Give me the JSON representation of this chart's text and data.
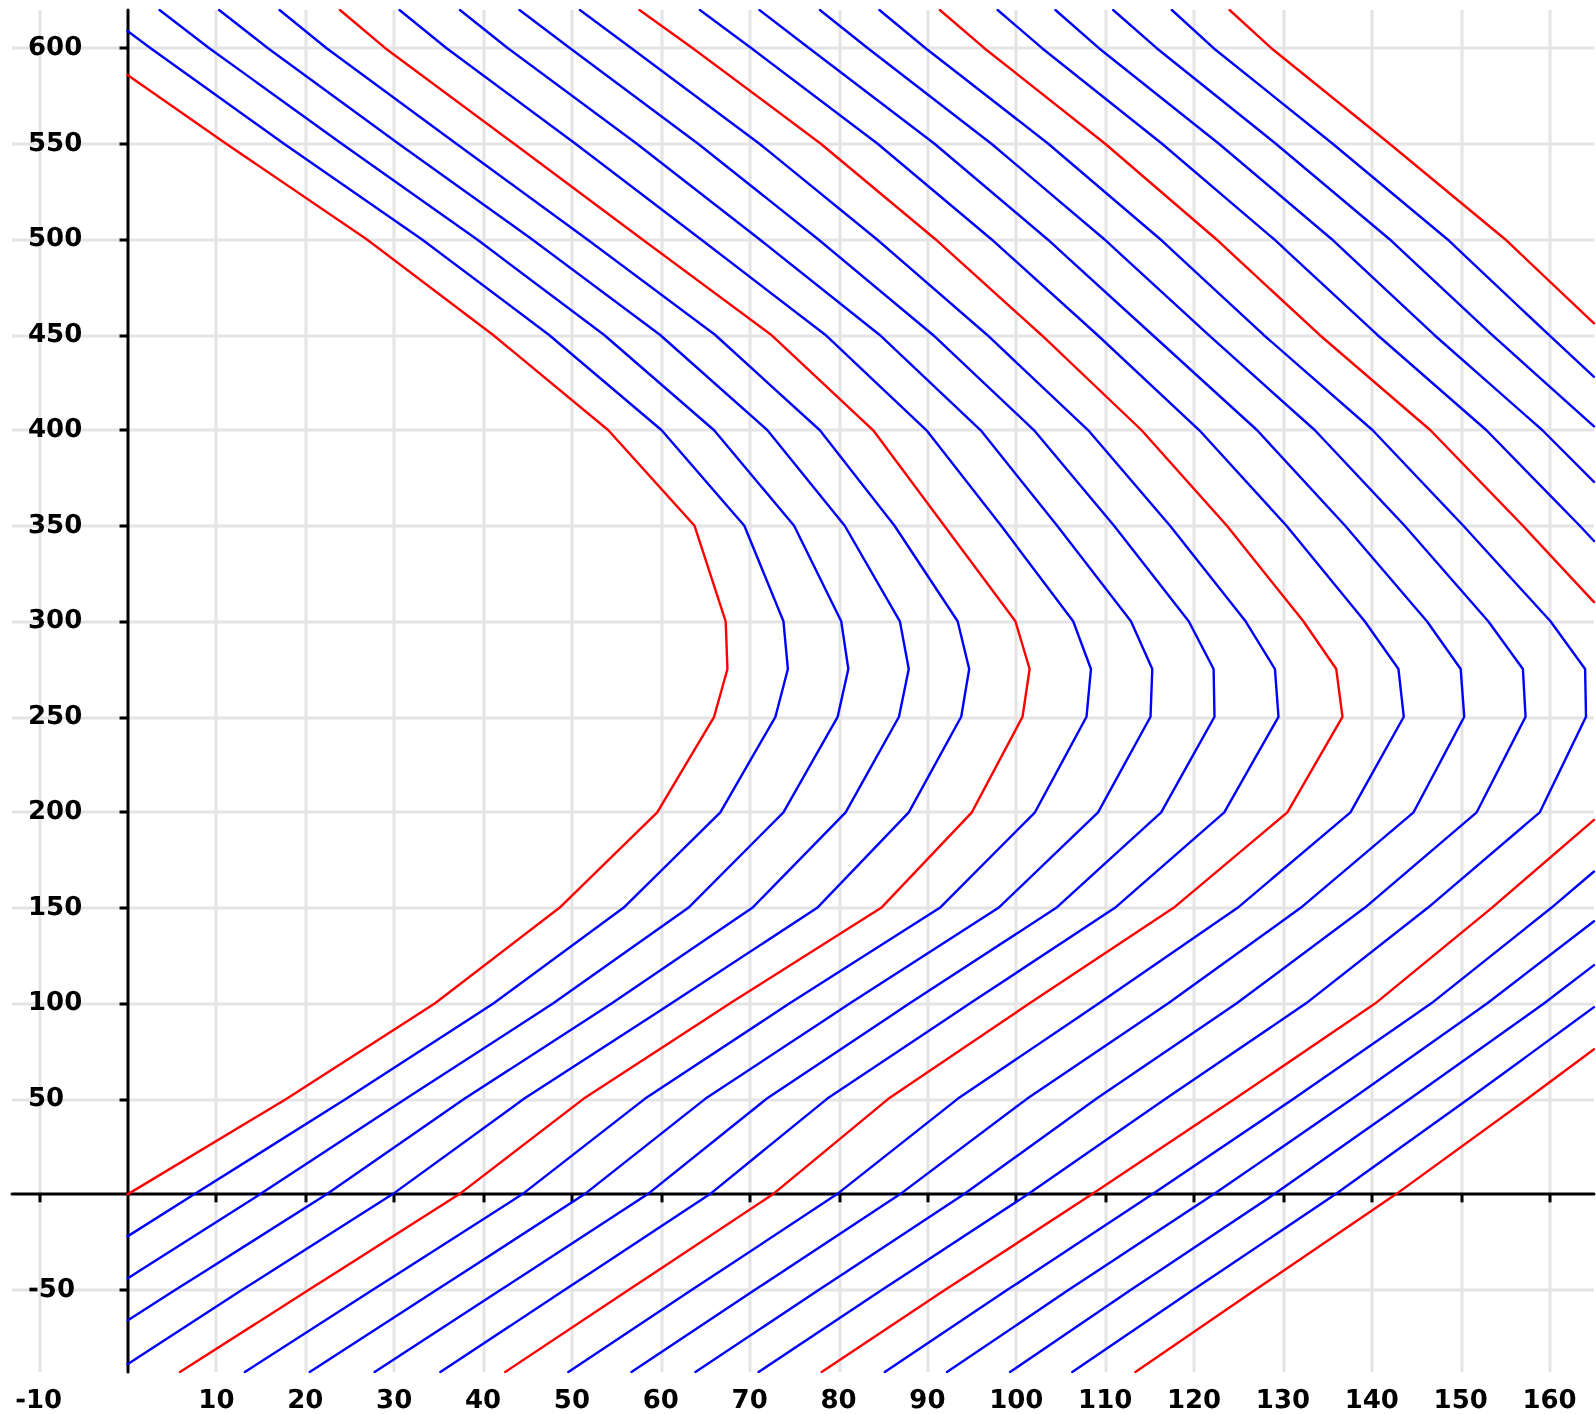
{
  "chart_data": {
    "type": "line",
    "marker": "none",
    "line_style": "solid",
    "grid": true,
    "xlim": [
      -13,
      165
    ],
    "ylim": [
      -93,
      620
    ],
    "xticks": [
      -10,
      10,
      20,
      30,
      40,
      50,
      60,
      70,
      80,
      90,
      100,
      110,
      120,
      130,
      140,
      150,
      160
    ],
    "yticks": [
      -50,
      50,
      100,
      150,
      200,
      250,
      300,
      350,
      400,
      450,
      500,
      550,
      600
    ],
    "series": [
      {
        "color": "#ff0000",
        "x": [
          0,
          11.1,
          26.9,
          41.1,
          54.1,
          63.8,
          67.3,
          67.5,
          66,
          59.6,
          48.6,
          34.6,
          17.9,
          0
        ],
        "values": [
          586,
          550,
          500,
          450,
          400,
          350,
          300,
          275,
          250,
          200,
          150,
          100,
          50,
          0
        ]
      },
      {
        "color": "#0000ff",
        "x": [
          0,
          2.6,
          17.6,
          33.1,
          47.4,
          60.1,
          69.4,
          73.8,
          74.3,
          72.9,
          66.7,
          55.8,
          41.2,
          24.6,
          7.5,
          0
        ],
        "values": [
          609,
          600,
          550,
          500,
          450,
          400,
          350,
          300,
          275,
          250,
          200,
          150,
          100,
          50,
          0,
          -22
        ]
      },
      {
        "color": "#0000ff",
        "x": [
          3.6,
          9.2,
          24.1,
          39.3,
          53.6,
          66,
          75,
          80.3,
          81.1,
          79.9,
          73.8,
          63.1,
          47.9,
          31.3,
          14.9,
          0
        ],
        "values": [
          620,
          600,
          550,
          500,
          450,
          400,
          350,
          300,
          275,
          250,
          200,
          150,
          100,
          50,
          0,
          -44
        ]
      },
      {
        "color": "#0000ff",
        "x": [
          10.3,
          15.8,
          30.5,
          45.5,
          59.9,
          72,
          80.7,
          86.9,
          87.9,
          86.8,
          80.8,
          70.3,
          54.5,
          37.9,
          22.4,
          5.4,
          0
        ],
        "values": [
          620,
          600,
          550,
          500,
          450,
          400,
          350,
          300,
          275,
          250,
          200,
          150,
          100,
          50,
          0,
          -50,
          -66
        ]
      },
      {
        "color": "#0000ff",
        "x": [
          17.1,
          22.4,
          37,
          51.7,
          66.1,
          77.9,
          86.3,
          93.4,
          94.7,
          93.8,
          87.9,
          77.6,
          61.2,
          44.6,
          29.8,
          12.9,
          0
        ],
        "values": [
          620,
          600,
          550,
          500,
          450,
          400,
          350,
          300,
          275,
          250,
          200,
          150,
          100,
          50,
          0,
          -50,
          -89
        ]
      },
      {
        "color": "#ff0000",
        "x": [
          23.9,
          29,
          43.5,
          57.9,
          72.4,
          83.9,
          91.9,
          99.9,
          101.5,
          100.7,
          95,
          84.8,
          67.8,
          51.3,
          37.3,
          20.4,
          5.9
        ],
        "values": [
          620,
          600,
          550,
          500,
          450,
          400,
          350,
          300,
          275,
          250,
          200,
          150,
          100,
          50,
          0,
          -50,
          -93
        ]
      },
      {
        "color": "#0000ff",
        "x": [
          30.6,
          35.9,
          50.4,
          64.5,
          78.5,
          89.9,
          98.3,
          106.4,
          108.4,
          107.9,
          102.1,
          91.4,
          74.5,
          58.2,
          44.4,
          27.6,
          13.2
        ],
        "values": [
          620,
          600,
          550,
          500,
          450,
          400,
          350,
          300,
          275,
          250,
          200,
          150,
          100,
          50,
          0,
          -50,
          -93
        ]
      },
      {
        "color": "#0000ff",
        "x": [
          37.4,
          42.8,
          57.3,
          71.1,
          84.6,
          96,
          104.6,
          112.9,
          115.3,
          115.1,
          109.2,
          98,
          81.3,
          65,
          51.4,
          34.8,
          20.5
        ],
        "values": [
          620,
          600,
          550,
          500,
          450,
          400,
          350,
          300,
          275,
          250,
          200,
          150,
          100,
          50,
          0,
          -50,
          -93
        ]
      },
      {
        "color": "#0000ff",
        "x": [
          44.1,
          49.8,
          64.2,
          77.7,
          90.6,
          102,
          111,
          119.4,
          122.2,
          122.3,
          116.3,
          104.5,
          88,
          71.9,
          58.5,
          42,
          27.8
        ],
        "values": [
          620,
          600,
          550,
          500,
          450,
          400,
          350,
          300,
          275,
          250,
          200,
          150,
          100,
          50,
          0,
          -50,
          -93
        ]
      },
      {
        "color": "#0000ff",
        "x": [
          50.9,
          56.7,
          71.1,
          84.3,
          96.7,
          108.1,
          117.3,
          125.8,
          129.1,
          129.5,
          123.4,
          111.1,
          94.8,
          78.7,
          65.5,
          49.2,
          35.2
        ],
        "values": [
          620,
          600,
          550,
          500,
          450,
          400,
          350,
          300,
          275,
          250,
          200,
          150,
          100,
          50,
          0,
          -50,
          -93
        ]
      },
      {
        "color": "#ff0000",
        "x": [
          57.6,
          63.6,
          78,
          90.9,
          102.8,
          114.1,
          123.7,
          132.3,
          136,
          136.7,
          130.5,
          117.7,
          101.5,
          85.6,
          72.6,
          56.4,
          42.5
        ],
        "values": [
          620,
          600,
          550,
          500,
          450,
          400,
          350,
          300,
          275,
          250,
          200,
          150,
          100,
          50,
          0,
          -50,
          -93
        ]
      },
      {
        "color": "#0000ff",
        "x": [
          64.4,
          70.2,
          84.4,
          97.2,
          109.1,
          120.6,
          130.4,
          139.2,
          143,
          143.6,
          137.6,
          124.9,
          109.3,
          93.4,
          79.8,
          63.5,
          49.6
        ],
        "values": [
          620,
          600,
          550,
          500,
          450,
          400,
          350,
          300,
          275,
          250,
          200,
          150,
          100,
          50,
          0,
          -50,
          -93
        ]
      },
      {
        "color": "#0000ff",
        "x": [
          71.1,
          76.7,
          90.8,
          103.5,
          115.3,
          127.1,
          137,
          146.2,
          150,
          150.4,
          144.7,
          132,
          117.1,
          101.2,
          86.9,
          70.6,
          56.7
        ],
        "values": [
          620,
          600,
          550,
          500,
          450,
          400,
          350,
          300,
          275,
          250,
          200,
          150,
          100,
          50,
          0,
          -50,
          -93
        ]
      },
      {
        "color": "#0000ff",
        "x": [
          77.9,
          83.3,
          97.2,
          109.9,
          121.6,
          133.6,
          143.7,
          153.1,
          157,
          157.3,
          151.8,
          139.2,
          124.8,
          109,
          94.1,
          77.8,
          63.9
        ],
        "values": [
          620,
          600,
          550,
          500,
          450,
          400,
          350,
          300,
          275,
          250,
          200,
          150,
          100,
          50,
          0,
          -50,
          -93
        ]
      },
      {
        "color": "#0000ff",
        "x": [
          84.6,
          89.8,
          103.6,
          116.2,
          127.8,
          140.1,
          150.3,
          160.1,
          164,
          164.1,
          158.9,
          146.3,
          132.6,
          116.8,
          101.3,
          84.9,
          71
        ],
        "values": [
          620,
          600,
          550,
          500,
          450,
          400,
          350,
          300,
          275,
          250,
          200,
          150,
          100,
          50,
          0,
          -50,
          -93
        ]
      },
      {
        "color": "#ff0000",
        "x": [
          91.4,
          96.4,
          110,
          122.5,
          134.1,
          146.6,
          157,
          165
        ],
        "values": [
          620,
          600,
          550,
          500,
          450,
          400,
          350,
          310
        ]
      },
      {
        "color": "#ff0000",
        "x": [
          165,
          153.5,
          140.4,
          124.6,
          108.5,
          92,
          78.1
        ],
        "values": [
          196,
          150,
          100,
          50,
          0,
          -50,
          -93
        ]
      },
      {
        "color": "#0000ff",
        "x": [
          97.9,
          102.9,
          116.4,
          129,
          140.6,
          152.9,
          163.4,
          165
        ],
        "values": [
          620,
          600,
          550,
          500,
          450,
          400,
          350,
          342
        ]
      },
      {
        "color": "#0000ff",
        "x": [
          165,
          160.2,
          146.7,
          131.2,
          115.3,
          99,
          85.2
        ],
        "values": [
          169,
          150,
          100,
          50,
          0,
          -50,
          -93
        ]
      },
      {
        "color": "#0000ff",
        "x": [
          104.4,
          109.3,
          122.8,
          135.5,
          147,
          159.2,
          165
        ],
        "values": [
          620,
          600,
          550,
          500,
          450,
          400,
          373
        ]
      },
      {
        "color": "#0000ff",
        "x": [
          165,
          153,
          137.8,
          122.2,
          105.9,
          92.2
        ],
        "values": [
          143,
          100,
          50,
          0,
          -50,
          -93
        ]
      },
      {
        "color": "#0000ff",
        "x": [
          110.9,
          115.8,
          129.2,
          142,
          153.5,
          165
        ],
        "values": [
          620,
          600,
          550,
          500,
          450,
          402
        ]
      },
      {
        "color": "#0000ff",
        "x": [
          165,
          159.4,
          144.3,
          129,
          112.9,
          99.3
        ],
        "values": [
          120,
          100,
          50,
          0,
          -50,
          -93
        ]
      },
      {
        "color": "#0000ff",
        "x": [
          117.5,
          122.2,
          135.6,
          148.5,
          159.9,
          165
        ],
        "values": [
          620,
          600,
          550,
          500,
          450,
          428
        ]
      },
      {
        "color": "#0000ff",
        "x": [
          165,
          150.9,
          135.9,
          119.9,
          106.3
        ],
        "values": [
          98,
          50,
          0,
          -50,
          -93
        ]
      },
      {
        "color": "#ff0000",
        "x": [
          124,
          128.7,
          142,
          155,
          165
        ],
        "values": [
          620,
          600,
          550,
          500,
          456
        ]
      },
      {
        "color": "#ff0000",
        "x": [
          165,
          157.5,
          142.7,
          126.9,
          113.4
        ],
        "values": [
          76,
          50,
          0,
          -50,
          -93
        ]
      }
    ]
  }
}
